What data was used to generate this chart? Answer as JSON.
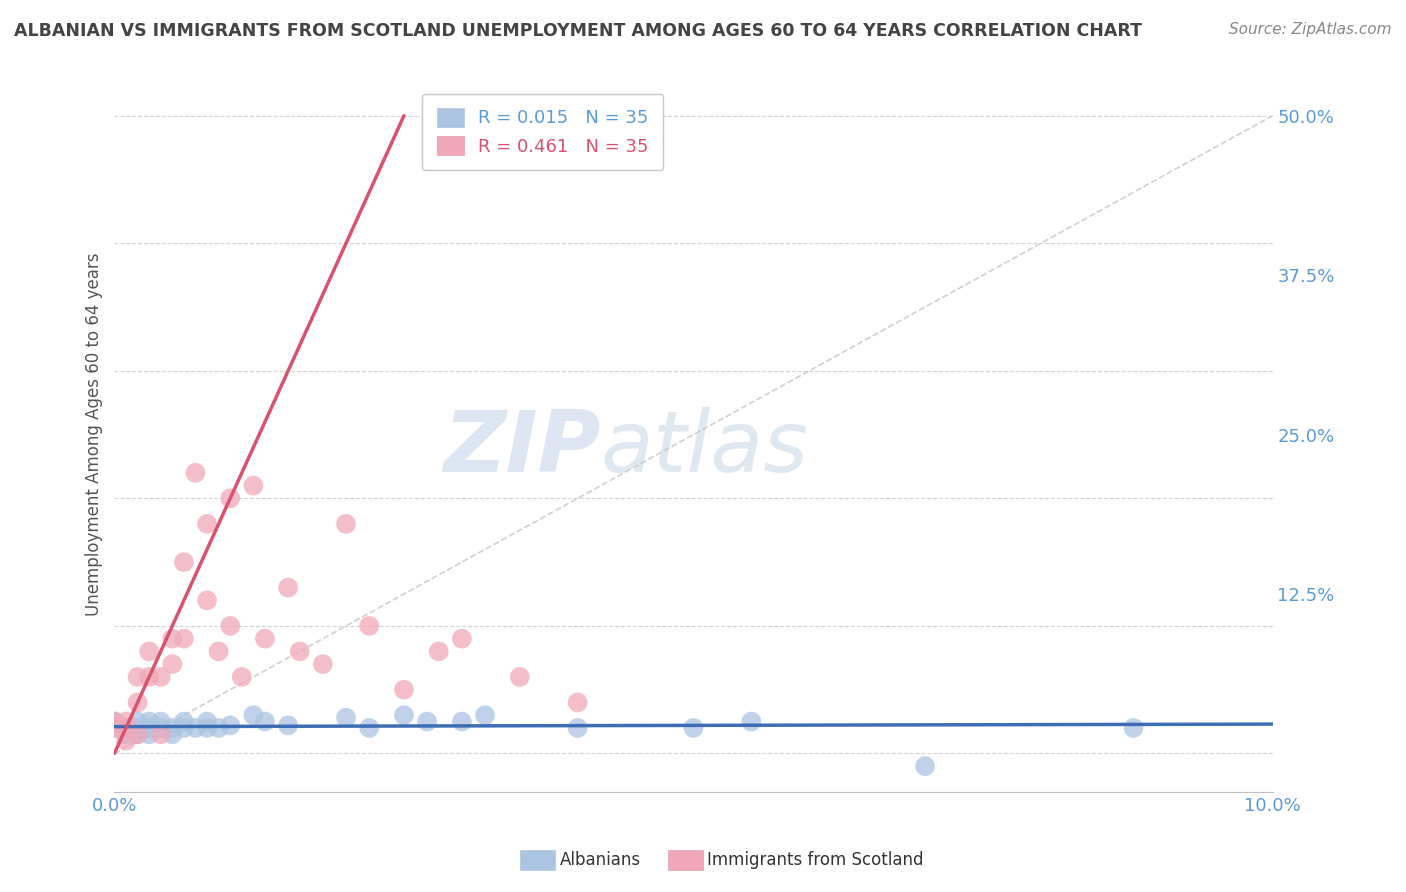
{
  "title": "ALBANIAN VS IMMIGRANTS FROM SCOTLAND UNEMPLOYMENT AMONG AGES 60 TO 64 YEARS CORRELATION CHART",
  "source": "Source: ZipAtlas.com",
  "ylabel": "Unemployment Among Ages 60 to 64 years",
  "ytick_labels": [
    "12.5%",
    "25.0%",
    "37.5%",
    "50.0%"
  ],
  "ytick_values": [
    0.125,
    0.25,
    0.375,
    0.5
  ],
  "xlim": [
    0,
    0.1
  ],
  "ylim": [
    -0.03,
    0.53
  ],
  "watermark_zip": "ZIP",
  "watermark_atlas": "atlas",
  "title_color": "#444444",
  "source_color": "#888888",
  "background_color": "#ffffff",
  "grid_color": "#d0d0d0",
  "albanian_color": "#aac4e2",
  "albanian_line_color": "#3d6db5",
  "scotland_color": "#f0a8b8",
  "scotland_line_color": "#d9526e",
  "diagonal_color": "#c8c8c8",
  "albanian_x": [
    0.0,
    0.0,
    0.001,
    0.001,
    0.002,
    0.002,
    0.002,
    0.003,
    0.003,
    0.003,
    0.004,
    0.004,
    0.005,
    0.005,
    0.006,
    0.006,
    0.007,
    0.008,
    0.008,
    0.009,
    0.01,
    0.012,
    0.013,
    0.015,
    0.02,
    0.022,
    0.025,
    0.027,
    0.03,
    0.032,
    0.04,
    0.05,
    0.055,
    0.07,
    0.088
  ],
  "albanian_y": [
    0.02,
    0.025,
    0.015,
    0.02,
    0.015,
    0.02,
    0.025,
    0.015,
    0.02,
    0.025,
    0.02,
    0.025,
    0.015,
    0.02,
    0.02,
    0.025,
    0.02,
    0.02,
    0.025,
    0.02,
    0.022,
    0.03,
    0.025,
    0.022,
    0.028,
    0.02,
    0.03,
    0.025,
    0.025,
    0.03,
    0.02,
    0.02,
    0.025,
    -0.01,
    0.02
  ],
  "scotland_x": [
    0.0,
    0.0,
    0.001,
    0.001,
    0.001,
    0.002,
    0.002,
    0.002,
    0.003,
    0.003,
    0.004,
    0.004,
    0.005,
    0.005,
    0.006,
    0.006,
    0.007,
    0.008,
    0.008,
    0.009,
    0.01,
    0.01,
    0.011,
    0.012,
    0.013,
    0.015,
    0.016,
    0.018,
    0.02,
    0.022,
    0.025,
    0.028,
    0.03,
    0.035,
    0.04
  ],
  "scotland_y": [
    0.02,
    0.025,
    0.01,
    0.02,
    0.025,
    0.015,
    0.04,
    0.06,
    0.06,
    0.08,
    0.015,
    0.06,
    0.07,
    0.09,
    0.09,
    0.15,
    0.22,
    0.12,
    0.18,
    0.08,
    0.1,
    0.2,
    0.06,
    0.21,
    0.09,
    0.13,
    0.08,
    0.07,
    0.18,
    0.1,
    0.05,
    0.08,
    0.09,
    0.06,
    0.04
  ],
  "albanian_line_x": [
    0.0,
    0.1
  ],
  "albanian_line_y": [
    0.021,
    0.023
  ],
  "scotland_line_x": [
    0.0,
    0.025
  ],
  "scotland_line_y": [
    0.0,
    0.5
  ],
  "albanian_R": 0.015,
  "scotland_R": 0.461,
  "N": 35
}
